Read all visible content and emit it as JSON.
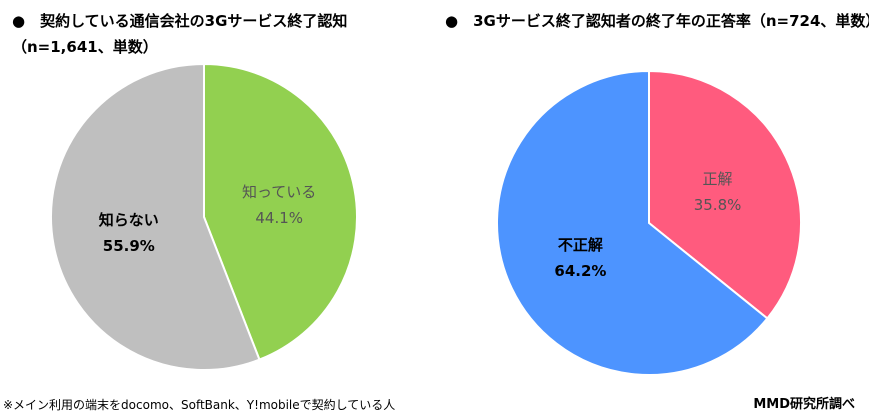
{
  "chart_data": [
    {
      "type": "pie",
      "title": "●　契約している通信会社の3Gサービス終了認知",
      "subtitle": "（n=1,641、単数）",
      "slices": [
        {
          "label": "知っている",
          "value": 44.1,
          "value_label": "44.1%",
          "color": "#92d050",
          "text_color": "#555555",
          "bold": false
        },
        {
          "label": "知らない",
          "value": 55.9,
          "value_label": "55.9%",
          "color": "#bfbfbf",
          "text_color": "#000000",
          "bold": true
        }
      ]
    },
    {
      "type": "pie",
      "title": "●　3Gサービス終了認知者の終了年の正答率（n=724、単数）",
      "slices": [
        {
          "label": "正解",
          "value": 35.8,
          "value_label": "35.8%",
          "color": "#ff5b7e",
          "text_color": "#555555",
          "bold": false
        },
        {
          "label": "不正解",
          "value": 64.2,
          "value_label": "64.2%",
          "color": "#4d94ff",
          "text_color": "#000000",
          "bold": true
        }
      ]
    }
  ],
  "footnote": "※メイン利用の端末をdocomo、SoftBank、Y!mobileで契約している人",
  "credit": "MMD研究所調べ"
}
